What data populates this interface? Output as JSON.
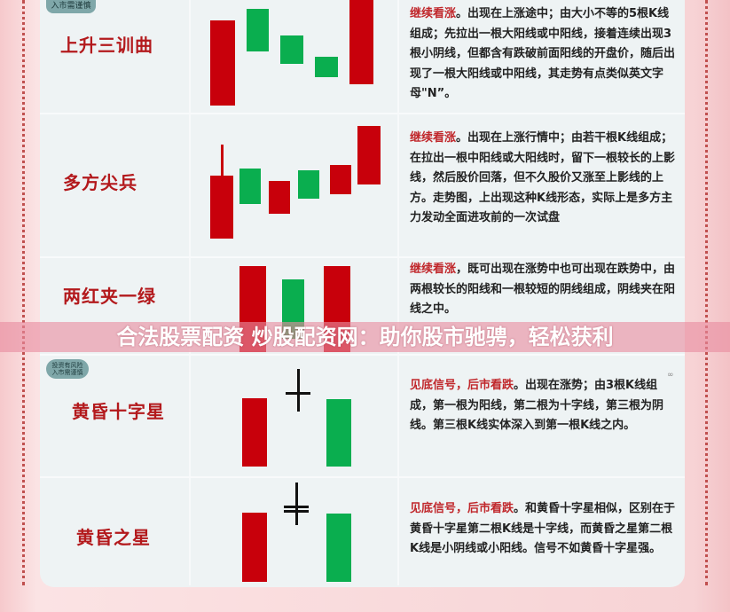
{
  "colors": {
    "bullish": "#c8000b",
    "bearish": "#0aae4f",
    "title": "#b3191c",
    "highlight": "#c0272b"
  },
  "badges": {
    "top": "入市需谨慎",
    "risk_line1": "投资有风险",
    "risk_line2": "入市需谨慎"
  },
  "patterns": [
    {
      "name": "上升三训曲",
      "signal": "继续看涨",
      "text": "。出现在上涨途中；由大小不等的5根K线组成；先拉出一根大阳线或中阳线，接着连续出现3根小阴线，但都含有跌破前面阳线的开盘价，随后出现了一根大阳线或中阳线，其走势有点类似英文字母\"N”。",
      "candles": [
        "bullish",
        "bearish",
        "bearish",
        "bearish",
        "bullish"
      ]
    },
    {
      "name": "多方尖兵",
      "signal": "继续看涨",
      "text": "。出现在上涨行情中；由若干根K线组成；在拉出一根中阳线或大阳线时，留下一根较长的上影线，然后股价回落，但不久股价又涨至上影线的上方。走势图，上出现这种K线形态，实际上是多方主力发动全面进攻前的一次试盘",
      "candles": [
        "bullish",
        "bearish",
        "bullish",
        "bearish",
        "bullish",
        "bullish"
      ]
    },
    {
      "name": "两红夹一绿",
      "signal": "继续看涨",
      "text": "，既可出现在涨势中也可出现在跌势中，由两根较长的阳线和一根较短的阴线组成，阴线夹在阳线之中。",
      "candles": [
        "bullish",
        "bearish",
        "bullish"
      ]
    },
    {
      "name": "黄昏十字星",
      "signal": "见底信号，后市看跌",
      "text": "。出现在涨势；由3根K线组成，第一根为阳线，第二根为十字线，第三根为阴线。第三根K线实体深入到第一根K线之内。",
      "candles": [
        "bullish",
        "doji",
        "bearish"
      ]
    },
    {
      "name": "黄昏之星",
      "signal": "见底信号，后市看跌",
      "text": "。和黄昏十字星相似，区别在于黄昏十字星第二根K线是十字线，而黄昏之星第二根K线是小阴线或小阳线。信号不如黄昏十字星强。",
      "candles": [
        "bullish",
        "small",
        "bearish"
      ]
    }
  ],
  "watermark": "合法股票配资 炒股配资网：助你股市驰骋，轻松获利"
}
